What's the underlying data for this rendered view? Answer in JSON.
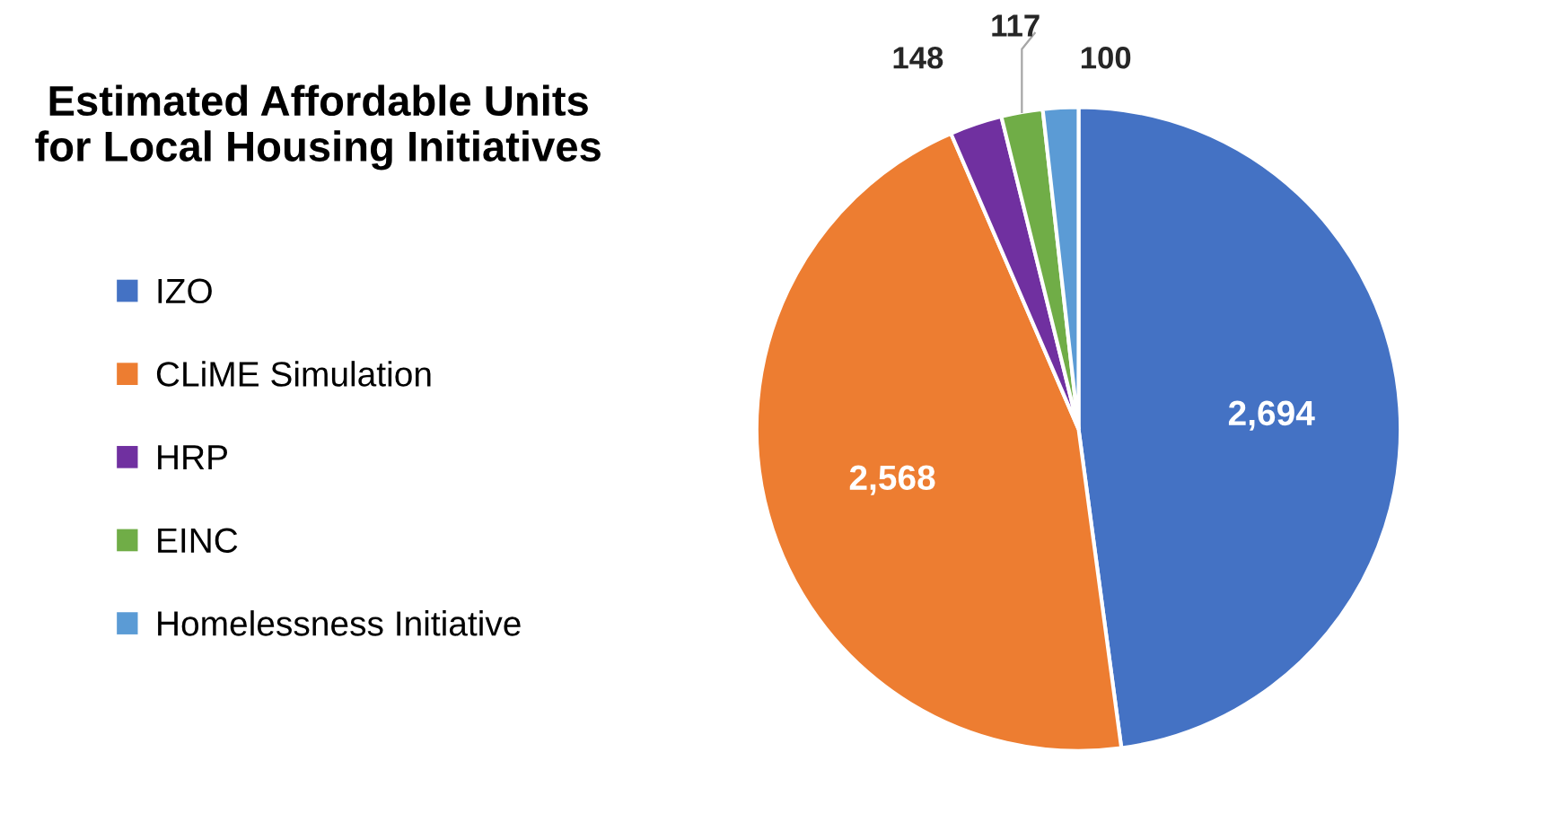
{
  "chart_data": {
    "type": "pie",
    "title": "Estimated Affordable Units\nfor Local Housing Initiatives",
    "categories": [
      "IZO",
      "CLiME Simulation",
      "HRP",
      "EINC",
      "Homelessness Initiative"
    ],
    "values": [
      2694,
      2568,
      148,
      117,
      100
    ],
    "colors": [
      "#4472c4",
      "#ed7d31",
      "#7030a0",
      "#70ad47",
      "#5b9bd5"
    ],
    "value_labels": [
      "2,694",
      "2,568",
      "148",
      "117",
      "100"
    ],
    "legend": "left"
  }
}
